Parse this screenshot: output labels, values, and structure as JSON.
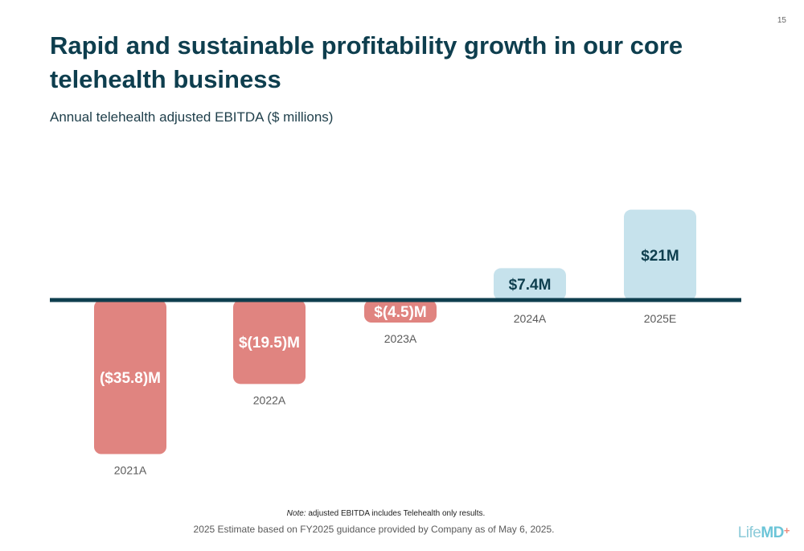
{
  "page_number": "15",
  "title": "Rapid and sustainable profitability growth in our core telehealth business",
  "subtitle": "Annual telehealth adjusted EBITDA ($ millions)",
  "footer": {
    "note_prefix": "Note:",
    "note_text": " adjusted EBITDA includes Telehealth only results.",
    "estimate": "2025 Estimate based on FY2025 guidance provided by Company as of May 6, 2025."
  },
  "logo": {
    "life": "Life",
    "md": "MD",
    "plus": "+"
  },
  "colors": {
    "negative": "#e08480",
    "positive": "#c6e2ec",
    "baseline": "#0e3e4e",
    "positive_label": "#0e3e4e",
    "negative_label": "#ffffff",
    "category_label": "#5a5a5a"
  },
  "chart_data": {
    "type": "bar",
    "categories": [
      "2021A",
      "2022A",
      "2023A",
      "2024A",
      "2025E"
    ],
    "values": [
      -35.8,
      -19.5,
      -4.5,
      7.4,
      21
    ],
    "value_labels": [
      "($35.8)M",
      "$(19.5)M",
      "$(4.5)M",
      "$7.4M",
      "$21M"
    ],
    "title": "",
    "xlabel": "",
    "ylabel": "",
    "grid": false,
    "legend": "none"
  }
}
